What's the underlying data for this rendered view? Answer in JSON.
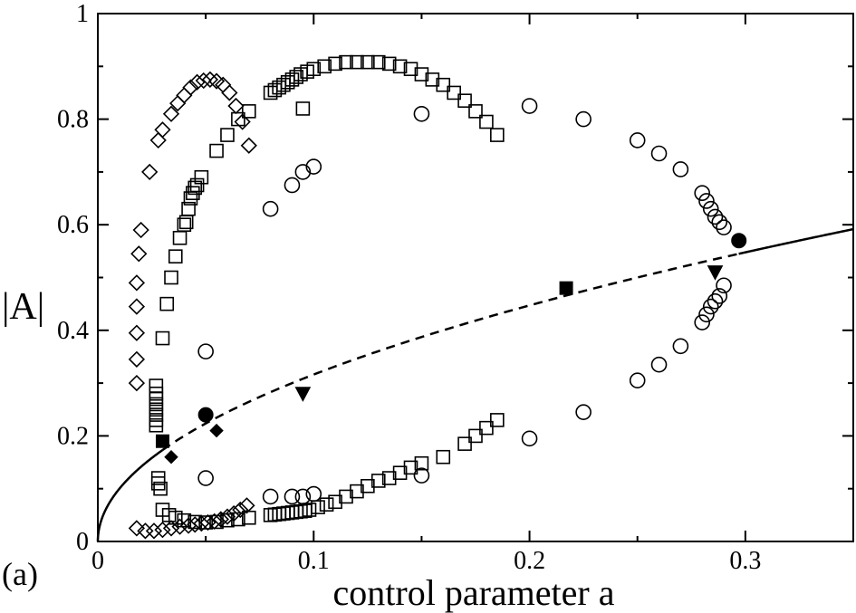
{
  "chart_data": {
    "type": "scatter",
    "panel_label": "(a)",
    "xlabel": "control parameter a",
    "ylabel": "|A|",
    "xlim": [
      0,
      0.35
    ],
    "ylim": [
      0,
      1
    ],
    "x_ticks": [
      0,
      0.1,
      0.2,
      0.3
    ],
    "x_tick_labels": [
      "0",
      "0.1",
      "0.2",
      "0.3"
    ],
    "y_ticks": [
      0,
      0.2,
      0.4,
      0.6,
      0.8,
      1
    ],
    "y_tick_labels": [
      "0",
      "0.2",
      "0.4",
      "0.6",
      "0.8",
      "1"
    ],
    "grid": false,
    "legend": "none",
    "curve": {
      "description": "|A| = sqrt(a)",
      "exponent": 0.5,
      "solid_segments": [
        [
          0.0,
          0.03
        ],
        [
          0.297,
          0.35
        ]
      ],
      "dashed_segment": [
        0.03,
        0.297
      ]
    },
    "series": [
      {
        "marker": "diamond-open",
        "points": [
          [
            0.018,
            0.025
          ],
          [
            0.022,
            0.02
          ],
          [
            0.026,
            0.02
          ],
          [
            0.03,
            0.022
          ],
          [
            0.034,
            0.025
          ],
          [
            0.038,
            0.028
          ],
          [
            0.042,
            0.03
          ],
          [
            0.045,
            0.032
          ],
          [
            0.048,
            0.034
          ],
          [
            0.051,
            0.036
          ],
          [
            0.054,
            0.038
          ],
          [
            0.057,
            0.042
          ],
          [
            0.06,
            0.047
          ],
          [
            0.063,
            0.053
          ],
          [
            0.066,
            0.06
          ],
          [
            0.069,
            0.068
          ],
          [
            0.018,
            0.3
          ],
          [
            0.018,
            0.345
          ],
          [
            0.018,
            0.395
          ],
          [
            0.018,
            0.445
          ],
          [
            0.018,
            0.49
          ],
          [
            0.019,
            0.545
          ],
          [
            0.02,
            0.59
          ],
          [
            0.024,
            0.7
          ],
          [
            0.028,
            0.76
          ],
          [
            0.03,
            0.78
          ],
          [
            0.034,
            0.81
          ],
          [
            0.037,
            0.83
          ],
          [
            0.04,
            0.845
          ],
          [
            0.043,
            0.86
          ],
          [
            0.046,
            0.87
          ],
          [
            0.049,
            0.873
          ],
          [
            0.052,
            0.875
          ],
          [
            0.055,
            0.872
          ],
          [
            0.058,
            0.865
          ],
          [
            0.061,
            0.85
          ],
          [
            0.064,
            0.825
          ],
          [
            0.067,
            0.795
          ],
          [
            0.07,
            0.75
          ]
        ]
      },
      {
        "marker": "square-open",
        "points": [
          [
            0.027,
            0.295
          ],
          [
            0.027,
            0.28
          ],
          [
            0.027,
            0.27
          ],
          [
            0.027,
            0.26
          ],
          [
            0.027,
            0.25
          ],
          [
            0.027,
            0.24
          ],
          [
            0.027,
            0.23
          ],
          [
            0.027,
            0.22
          ],
          [
            0.03,
            0.385
          ],
          [
            0.032,
            0.45
          ],
          [
            0.034,
            0.5
          ],
          [
            0.036,
            0.54
          ],
          [
            0.038,
            0.575
          ],
          [
            0.04,
            0.6
          ],
          [
            0.041,
            0.605
          ],
          [
            0.042,
            0.63
          ],
          [
            0.043,
            0.65
          ],
          [
            0.044,
            0.66
          ],
          [
            0.045,
            0.67
          ],
          [
            0.046,
            0.675
          ],
          [
            0.048,
            0.69
          ],
          [
            0.055,
            0.74
          ],
          [
            0.06,
            0.77
          ],
          [
            0.065,
            0.8
          ],
          [
            0.07,
            0.815
          ],
          [
            0.03,
            0.06
          ],
          [
            0.033,
            0.05
          ],
          [
            0.036,
            0.045
          ],
          [
            0.04,
            0.04
          ],
          [
            0.045,
            0.037
          ],
          [
            0.05,
            0.036
          ],
          [
            0.055,
            0.037
          ],
          [
            0.06,
            0.04
          ],
          [
            0.065,
            0.042
          ],
          [
            0.07,
            0.045
          ],
          [
            0.08,
            0.05
          ],
          [
            0.082,
            0.051
          ],
          [
            0.084,
            0.052
          ],
          [
            0.086,
            0.053
          ],
          [
            0.088,
            0.054
          ],
          [
            0.09,
            0.055
          ],
          [
            0.092,
            0.056
          ],
          [
            0.094,
            0.057
          ],
          [
            0.096,
            0.058
          ],
          [
            0.098,
            0.06
          ],
          [
            0.102,
            0.065
          ],
          [
            0.106,
            0.07
          ],
          [
            0.11,
            0.075
          ],
          [
            0.115,
            0.085
          ],
          [
            0.12,
            0.095
          ],
          [
            0.125,
            0.105
          ],
          [
            0.13,
            0.115
          ],
          [
            0.135,
            0.12
          ],
          [
            0.14,
            0.13
          ],
          [
            0.145,
            0.14
          ],
          [
            0.15,
            0.148
          ],
          [
            0.16,
            0.16
          ],
          [
            0.17,
            0.185
          ],
          [
            0.175,
            0.2
          ],
          [
            0.18,
            0.215
          ],
          [
            0.185,
            0.23
          ],
          [
            0.08,
            0.85
          ],
          [
            0.082,
            0.855
          ],
          [
            0.084,
            0.86
          ],
          [
            0.086,
            0.865
          ],
          [
            0.088,
            0.87
          ],
          [
            0.09,
            0.875
          ],
          [
            0.092,
            0.88
          ],
          [
            0.094,
            0.885
          ],
          [
            0.097,
            0.89
          ],
          [
            0.1,
            0.895
          ],
          [
            0.105,
            0.9
          ],
          [
            0.11,
            0.905
          ],
          [
            0.115,
            0.908
          ],
          [
            0.12,
            0.908
          ],
          [
            0.125,
            0.908
          ],
          [
            0.13,
            0.908
          ],
          [
            0.135,
            0.905
          ],
          [
            0.14,
            0.9
          ],
          [
            0.145,
            0.895
          ],
          [
            0.15,
            0.885
          ],
          [
            0.155,
            0.875
          ],
          [
            0.16,
            0.865
          ],
          [
            0.165,
            0.85
          ],
          [
            0.17,
            0.835
          ],
          [
            0.175,
            0.815
          ],
          [
            0.18,
            0.795
          ],
          [
            0.185,
            0.77
          ],
          [
            0.095,
            0.82
          ],
          [
            0.028,
            0.12
          ],
          [
            0.028,
            0.11
          ],
          [
            0.029,
            0.1
          ]
        ]
      },
      {
        "marker": "circle-open",
        "points": [
          [
            0.05,
            0.36
          ],
          [
            0.05,
            0.12
          ],
          [
            0.08,
            0.63
          ],
          [
            0.08,
            0.085
          ],
          [
            0.09,
            0.675
          ],
          [
            0.09,
            0.085
          ],
          [
            0.095,
            0.7
          ],
          [
            0.095,
            0.085
          ],
          [
            0.1,
            0.71
          ],
          [
            0.1,
            0.09
          ],
          [
            0.15,
            0.81
          ],
          [
            0.15,
            0.125
          ],
          [
            0.2,
            0.825
          ],
          [
            0.2,
            0.195
          ],
          [
            0.225,
            0.8
          ],
          [
            0.225,
            0.245
          ],
          [
            0.25,
            0.76
          ],
          [
            0.25,
            0.305
          ],
          [
            0.26,
            0.735
          ],
          [
            0.26,
            0.335
          ],
          [
            0.27,
            0.705
          ],
          [
            0.27,
            0.37
          ],
          [
            0.28,
            0.66
          ],
          [
            0.282,
            0.645
          ],
          [
            0.284,
            0.63
          ],
          [
            0.286,
            0.615
          ],
          [
            0.288,
            0.605
          ],
          [
            0.29,
            0.595
          ],
          [
            0.28,
            0.415
          ],
          [
            0.282,
            0.43
          ],
          [
            0.284,
            0.445
          ],
          [
            0.286,
            0.455
          ],
          [
            0.288,
            0.465
          ],
          [
            0.29,
            0.485
          ]
        ]
      },
      {
        "marker": "square-filled",
        "points": [
          [
            0.03,
            0.19
          ],
          [
            0.217,
            0.48
          ]
        ]
      },
      {
        "marker": "circle-filled",
        "points": [
          [
            0.05,
            0.24
          ],
          [
            0.297,
            0.57
          ]
        ]
      },
      {
        "marker": "diamond-filled",
        "points": [
          [
            0.034,
            0.16
          ],
          [
            0.055,
            0.21
          ]
        ]
      },
      {
        "marker": "triangle-down-filled",
        "points": [
          [
            0.095,
            0.28
          ],
          [
            0.286,
            0.51
          ]
        ]
      }
    ]
  }
}
